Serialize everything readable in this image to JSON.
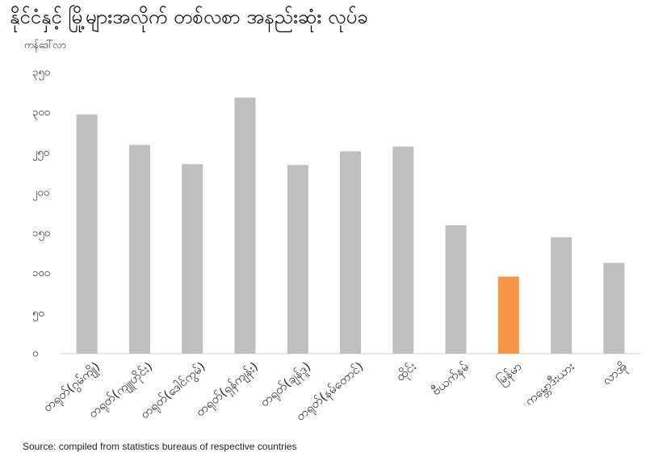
{
  "chart_data": {
    "type": "bar",
    "title": "နိုင်ငံနှင့် မြို့များအလိုက် တစ်လစာ အနည်းဆုံး လုပ်ခ",
    "y_label": "ကန်ဒေါ်လာ",
    "source": "Source: compiled from statistics bureaus of respective countries",
    "categories": [
      "တရုတ်(ဂွမ်ကျို)",
      "တရုတ်(ကျူဟိုင်း)",
      "တရုတ်(ဒေါင်ကွမ်)",
      "တရုတ်(ရှန်ကျန်း)",
      "တရုတ်(ချန်ဒူ)",
      "တရုတ်(နမ်တောင်)",
      "ထိုင်း",
      "ဗီယက်နမ်",
      "မြန်မာ",
      "ကမ္ဘောဒီးယား",
      "လာအို"
    ],
    "values": [
      298,
      260,
      236,
      319,
      235,
      252,
      258,
      160,
      96,
      145,
      113
    ],
    "colors": [
      "#bfbfbf",
      "#bfbfbf",
      "#bfbfbf",
      "#bfbfbf",
      "#bfbfbf",
      "#bfbfbf",
      "#bfbfbf",
      "#bfbfbf",
      "#f79646",
      "#bfbfbf",
      "#bfbfbf"
    ],
    "ylim": [
      0,
      350
    ],
    "yticks": [
      {
        "value": 0,
        "label": "၀"
      },
      {
        "value": 50,
        "label": "၅၀"
      },
      {
        "value": 100,
        "label": "၁၀၀"
      },
      {
        "value": 150,
        "label": "၁၅၀"
      },
      {
        "value": 200,
        "label": "၂၀၀"
      },
      {
        "value": 250,
        "label": "၂၅၀"
      },
      {
        "value": 300,
        "label": "၃၀၀"
      },
      {
        "value": 350,
        "label": "၃၅၀"
      }
    ],
    "grid": false
  }
}
